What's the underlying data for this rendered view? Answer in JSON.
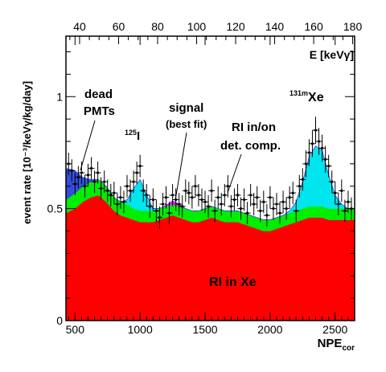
{
  "chart_data": {
    "type": "area",
    "xlabel_main": "NPE",
    "xlabel_sub": "cor",
    "ylabel": "event rate [10⁻³/keVγ/kg/day]",
    "top_axis_label": "E [keVγ]",
    "xlim": [
      430,
      2650
    ],
    "ylim": [
      0,
      1.27
    ],
    "top_xlim": [
      33,
      181
    ],
    "x_ticks": [
      500,
      1000,
      1500,
      2000,
      2500
    ],
    "x_ticklabels": [
      "500",
      "1000",
      "1500",
      "2000",
      "2500"
    ],
    "y_ticks": [
      0,
      0.5,
      1
    ],
    "y_ticklabels": [
      "0",
      "0.5",
      "1"
    ],
    "top_ticks": [
      40,
      60,
      80,
      100,
      120,
      140,
      160,
      180
    ],
    "top_ticklabels": [
      "40",
      "60",
      "80",
      "100",
      "120",
      "140",
      "160",
      "180"
    ],
    "stack_order": [
      "RI in Xe",
      "RI in/on det. comp.",
      "125I and 131mXe peaks",
      "signal (best fit)",
      "dead PMTs"
    ],
    "stack_colors": [
      "#ff0000",
      "#00ee00",
      "#00e5ee",
      "#ff00ff",
      "#1f3bd6"
    ],
    "x": [
      430,
      500,
      560,
      620,
      680,
      740,
      800,
      850,
      900,
      950,
      1000,
      1050,
      1100,
      1150,
      1200,
      1250,
      1300,
      1350,
      1400,
      1450,
      1500,
      1550,
      1600,
      1650,
      1700,
      1750,
      1800,
      1850,
      1900,
      1950,
      2000,
      2050,
      2100,
      2150,
      2200,
      2250,
      2300,
      2350,
      2400,
      2450,
      2500,
      2550,
      2600,
      2650
    ],
    "series": [
      {
        "name": "RI in Xe",
        "values": [
          0.48,
          0.5,
          0.53,
          0.55,
          0.56,
          0.53,
          0.49,
          0.47,
          0.46,
          0.45,
          0.44,
          0.44,
          0.44,
          0.45,
          0.46,
          0.47,
          0.46,
          0.45,
          0.44,
          0.44,
          0.45,
          0.46,
          0.45,
          0.44,
          0.44,
          0.44,
          0.43,
          0.42,
          0.41,
          0.4,
          0.4,
          0.41,
          0.42,
          0.43,
          0.44,
          0.45,
          0.46,
          0.46,
          0.46,
          0.45,
          0.45,
          0.45,
          0.45,
          0.45
        ]
      },
      {
        "name": "RI in/on det. comp.",
        "values": [
          0.06,
          0.07,
          0.07,
          0.07,
          0.07,
          0.07,
          0.06,
          0.06,
          0.06,
          0.05,
          0.05,
          0.05,
          0.05,
          0.05,
          0.05,
          0.05,
          0.05,
          0.05,
          0.05,
          0.05,
          0.05,
          0.05,
          0.05,
          0.05,
          0.05,
          0.05,
          0.05,
          0.05,
          0.05,
          0.05,
          0.05,
          0.05,
          0.05,
          0.05,
          0.05,
          0.05,
          0.05,
          0.05,
          0.05,
          0.05,
          0.05,
          0.05,
          0.05,
          0.05
        ]
      },
      {
        "name": "125I / 131mXe",
        "values": [
          0,
          0,
          0,
          0,
          0,
          0,
          0,
          0,
          0.02,
          0.09,
          0.14,
          0.07,
          0.01,
          0,
          0,
          0,
          0,
          0,
          0,
          0,
          0,
          0,
          0,
          0,
          0,
          0,
          0,
          0,
          0,
          0,
          0,
          0,
          0,
          0.01,
          0.04,
          0.12,
          0.22,
          0.27,
          0.25,
          0.15,
          0.06,
          0.02,
          0,
          0
        ]
      },
      {
        "name": "signal (best fit)",
        "values": [
          0,
          0,
          0,
          0,
          0,
          0,
          0,
          0,
          0,
          0,
          0,
          0,
          0,
          0,
          0.005,
          0.015,
          0.01,
          0,
          0,
          0,
          0,
          0,
          0,
          0,
          0,
          0,
          0,
          0,
          0,
          0,
          0,
          0,
          0,
          0,
          0,
          0,
          0,
          0,
          0,
          0,
          0,
          0,
          0,
          0
        ]
      },
      {
        "name": "dead PMTs",
        "values": [
          0.14,
          0.1,
          0.04,
          0.01,
          0,
          0,
          0,
          0,
          0,
          0,
          0,
          0,
          0,
          0,
          0,
          0,
          0,
          0,
          0,
          0,
          0,
          0,
          0,
          0,
          0,
          0,
          0,
          0,
          0,
          0,
          0,
          0,
          0,
          0,
          0,
          0,
          0,
          0,
          0,
          0,
          0,
          0,
          0,
          0
        ]
      }
    ],
    "data_points": {
      "x": [
        450,
        475,
        500,
        525,
        550,
        575,
        600,
        625,
        650,
        675,
        700,
        725,
        750,
        775,
        800,
        825,
        850,
        875,
        900,
        925,
        950,
        975,
        1000,
        1025,
        1050,
        1075,
        1100,
        1125,
        1150,
        1175,
        1200,
        1225,
        1250,
        1275,
        1300,
        1325,
        1350,
        1375,
        1400,
        1425,
        1450,
        1475,
        1500,
        1525,
        1550,
        1575,
        1600,
        1625,
        1650,
        1675,
        1700,
        1725,
        1750,
        1775,
        1800,
        1825,
        1850,
        1875,
        1900,
        1925,
        1950,
        1975,
        2000,
        2025,
        2050,
        2075,
        2100,
        2125,
        2150,
        2175,
        2200,
        2225,
        2250,
        2275,
        2300,
        2325,
        2350,
        2375,
        2400,
        2425,
        2450,
        2475,
        2500,
        2525,
        2550,
        2575,
        2600,
        2625
      ],
      "y": [
        0.7,
        0.67,
        0.61,
        0.64,
        0.66,
        0.6,
        0.65,
        0.68,
        0.62,
        0.66,
        0.59,
        0.62,
        0.58,
        0.56,
        0.57,
        0.52,
        0.55,
        0.53,
        0.6,
        0.58,
        0.62,
        0.66,
        0.69,
        0.58,
        0.56,
        0.51,
        0.54,
        0.49,
        0.46,
        0.52,
        0.55,
        0.48,
        0.56,
        0.54,
        0.52,
        0.51,
        0.58,
        0.57,
        0.55,
        0.6,
        0.56,
        0.54,
        0.53,
        0.51,
        0.58,
        0.49,
        0.55,
        0.52,
        0.56,
        0.6,
        0.51,
        0.54,
        0.56,
        0.5,
        0.54,
        0.48,
        0.56,
        0.52,
        0.55,
        0.49,
        0.53,
        0.47,
        0.55,
        0.5,
        0.52,
        0.48,
        0.53,
        0.5,
        0.55,
        0.57,
        0.49,
        0.6,
        0.63,
        0.7,
        0.75,
        0.79,
        0.85,
        0.8,
        0.77,
        0.72,
        0.69,
        0.62,
        0.57,
        0.52,
        0.58,
        0.49,
        0.53,
        0.5
      ],
      "err": [
        0.05,
        0.05,
        0.05,
        0.05,
        0.05,
        0.05,
        0.05,
        0.05,
        0.05,
        0.05,
        0.05,
        0.05,
        0.05,
        0.05,
        0.05,
        0.05,
        0.05,
        0.05,
        0.05,
        0.05,
        0.05,
        0.05,
        0.05,
        0.05,
        0.05,
        0.05,
        0.05,
        0.05,
        0.05,
        0.05,
        0.05,
        0.05,
        0.05,
        0.05,
        0.05,
        0.05,
        0.05,
        0.05,
        0.05,
        0.05,
        0.05,
        0.05,
        0.05,
        0.05,
        0.05,
        0.05,
        0.05,
        0.05,
        0.05,
        0.05,
        0.05,
        0.05,
        0.05,
        0.05,
        0.05,
        0.05,
        0.05,
        0.05,
        0.05,
        0.05,
        0.05,
        0.05,
        0.05,
        0.05,
        0.05,
        0.05,
        0.05,
        0.05,
        0.05,
        0.05,
        0.05,
        0.05,
        0.05,
        0.06,
        0.06,
        0.06,
        0.06,
        0.06,
        0.06,
        0.06,
        0.05,
        0.05,
        0.05,
        0.05,
        0.05,
        0.05,
        0.05,
        0.05
      ]
    },
    "annotations": {
      "dead_pmts_line1": "dead",
      "dead_pmts_line2": "PMTs",
      "signal_line1": "signal",
      "signal_line2": "(best fit)",
      "ri_det_line1": "RI in/on",
      "ri_det_line2": "det. comp.",
      "i125_sup": "125",
      "i125_main": "I",
      "xe131_sup": "131m",
      "xe131_main": "Xe",
      "ri_xe": "RI in Xe"
    }
  }
}
